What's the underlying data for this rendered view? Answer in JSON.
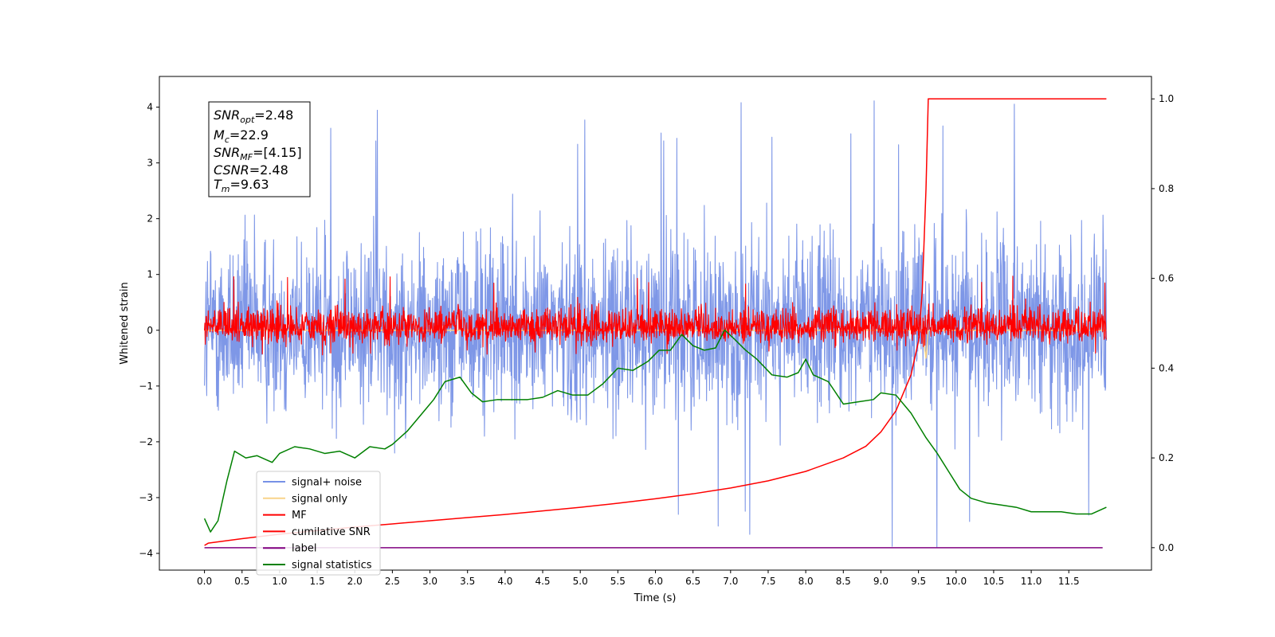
{
  "chart_data": {
    "type": "line",
    "xlabel": "Time (s)",
    "ylabel": "Whitened strain",
    "xlim": [
      -0.6,
      12.6
    ],
    "ylim": [
      -4.3,
      4.55
    ],
    "y2lim": [
      -0.05,
      1.05
    ],
    "xticks": [
      "0.0",
      "0.5",
      "1.0",
      "1.5",
      "2.0",
      "2.5",
      "3.0",
      "3.5",
      "4.0",
      "4.5",
      "5.0",
      "5.5",
      "6.0",
      "6.5",
      "7.0",
      "7.5",
      "8.0",
      "8.5",
      "9.0",
      "9.5",
      "10.0",
      "10.5",
      "11.0",
      "11.5"
    ],
    "yticks": [
      "4",
      "3",
      "2",
      "1",
      "0",
      "−1",
      "−2",
      "−3",
      "−4"
    ],
    "y2ticks": [
      "1.0",
      "0.8",
      "0.6",
      "0.4",
      "0.2",
      "0.0"
    ],
    "info_box": {
      "snr_opt": "=2.48",
      "mc": "=22.9",
      "snr_mf": "=[4.15]",
      "csnr": "=2.48",
      "tm": "=9.63"
    },
    "legend": [
      {
        "label": "signal+ noise",
        "color": "#7791e6"
      },
      {
        "label": "signal only",
        "color": "#f9d48a"
      },
      {
        "label": "MF",
        "color": "#ff0000"
      },
      {
        "label": "cumilative SNR",
        "color": "#ff0000"
      },
      {
        "label": "label",
        "color": "#800080"
      },
      {
        "label": "signal statistics",
        "color": "#008000"
      }
    ],
    "series": [
      {
        "name": "signal+ noise",
        "axis": "left",
        "color": "#7791e6",
        "t_range": [
          0.0,
          12.0
        ],
        "center": 0.0,
        "typical_range": [
          -2.2,
          2.6
        ],
        "extreme_range": [
          -3.9,
          4.15
        ]
      },
      {
        "name": "signal only",
        "axis": "left",
        "color": "#f9d48a",
        "points": [
          [
            0.0,
            0.0
          ],
          [
            9.55,
            0.0
          ],
          [
            9.6,
            -0.5
          ],
          [
            9.63,
            0.0
          ],
          [
            12.0,
            0.0
          ]
        ]
      },
      {
        "name": "MF",
        "axis": "left",
        "color": "#ff0000",
        "t_range": [
          0.0,
          12.0
        ],
        "center": 0.05,
        "typical_range": [
          -0.35,
          0.6
        ],
        "extreme_range": [
          -0.45,
          1.0
        ]
      },
      {
        "name": "cumilative SNR",
        "axis": "right",
        "color": "#ff0000",
        "points": [
          [
            0.0,
            0.005
          ],
          [
            0.05,
            0.01
          ],
          [
            0.5,
            0.02
          ],
          [
            1.0,
            0.03
          ],
          [
            1.5,
            0.038
          ],
          [
            2.0,
            0.046
          ],
          [
            2.5,
            0.053
          ],
          [
            3.0,
            0.06
          ],
          [
            3.5,
            0.067
          ],
          [
            4.0,
            0.074
          ],
          [
            4.5,
            0.082
          ],
          [
            5.0,
            0.09
          ],
          [
            5.5,
            0.099
          ],
          [
            6.0,
            0.109
          ],
          [
            6.5,
            0.12
          ],
          [
            7.0,
            0.133
          ],
          [
            7.5,
            0.149
          ],
          [
            8.0,
            0.17
          ],
          [
            8.5,
            0.2
          ],
          [
            8.8,
            0.226
          ],
          [
            9.0,
            0.258
          ],
          [
            9.2,
            0.305
          ],
          [
            9.4,
            0.385
          ],
          [
            9.5,
            0.46
          ],
          [
            9.55,
            0.57
          ],
          [
            9.6,
            0.8
          ],
          [
            9.63,
            1.0
          ],
          [
            12.0,
            1.0
          ]
        ]
      },
      {
        "name": "label",
        "axis": "right",
        "color": "#800080",
        "points": [
          [
            0.0,
            0.0
          ],
          [
            11.95,
            0.0
          ]
        ]
      },
      {
        "name": "signal statistics",
        "axis": "right",
        "color": "#008000",
        "points": [
          [
            0.0,
            0.065
          ],
          [
            0.08,
            0.035
          ],
          [
            0.18,
            0.06
          ],
          [
            0.3,
            0.15
          ],
          [
            0.4,
            0.215
          ],
          [
            0.55,
            0.2
          ],
          [
            0.7,
            0.205
          ],
          [
            0.9,
            0.19
          ],
          [
            1.0,
            0.21
          ],
          [
            1.2,
            0.225
          ],
          [
            1.4,
            0.22
          ],
          [
            1.6,
            0.21
          ],
          [
            1.8,
            0.215
          ],
          [
            2.0,
            0.2
          ],
          [
            2.2,
            0.225
          ],
          [
            2.4,
            0.22
          ],
          [
            2.5,
            0.23
          ],
          [
            2.7,
            0.26
          ],
          [
            2.9,
            0.3
          ],
          [
            3.05,
            0.33
          ],
          [
            3.2,
            0.37
          ],
          [
            3.4,
            0.38
          ],
          [
            3.55,
            0.345
          ],
          [
            3.7,
            0.325
          ],
          [
            3.9,
            0.33
          ],
          [
            4.1,
            0.33
          ],
          [
            4.3,
            0.33
          ],
          [
            4.5,
            0.335
          ],
          [
            4.7,
            0.35
          ],
          [
            4.9,
            0.34
          ],
          [
            5.1,
            0.34
          ],
          [
            5.3,
            0.365
          ],
          [
            5.5,
            0.4
          ],
          [
            5.7,
            0.395
          ],
          [
            5.9,
            0.415
          ],
          [
            6.05,
            0.44
          ],
          [
            6.2,
            0.44
          ],
          [
            6.35,
            0.475
          ],
          [
            6.5,
            0.45
          ],
          [
            6.65,
            0.44
          ],
          [
            6.8,
            0.445
          ],
          [
            6.92,
            0.485
          ],
          [
            7.05,
            0.465
          ],
          [
            7.2,
            0.44
          ],
          [
            7.35,
            0.42
          ],
          [
            7.55,
            0.385
          ],
          [
            7.75,
            0.38
          ],
          [
            7.9,
            0.39
          ],
          [
            8.0,
            0.42
          ],
          [
            8.1,
            0.385
          ],
          [
            8.3,
            0.37
          ],
          [
            8.5,
            0.32
          ],
          [
            8.7,
            0.325
          ],
          [
            8.9,
            0.33
          ],
          [
            9.0,
            0.345
          ],
          [
            9.2,
            0.34
          ],
          [
            9.4,
            0.3
          ],
          [
            9.6,
            0.245
          ],
          [
            9.75,
            0.21
          ],
          [
            9.9,
            0.17
          ],
          [
            10.05,
            0.13
          ],
          [
            10.2,
            0.11
          ],
          [
            10.4,
            0.1
          ],
          [
            10.6,
            0.095
          ],
          [
            10.8,
            0.09
          ],
          [
            11.0,
            0.08
          ],
          [
            11.2,
            0.08
          ],
          [
            11.4,
            0.08
          ],
          [
            11.6,
            0.075
          ],
          [
            11.8,
            0.075
          ],
          [
            12.0,
            0.09
          ]
        ]
      }
    ]
  }
}
